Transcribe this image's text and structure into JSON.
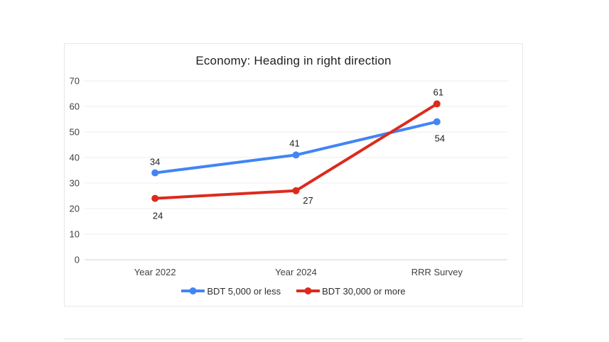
{
  "chart_data": {
    "type": "line",
    "title": "Economy: Heading in right direction",
    "categories": [
      "Year 2022",
      "Year 2024",
      "RRR Survey"
    ],
    "series": [
      {
        "name": "BDT 5,000 or less",
        "color": "#4285f4",
        "values": [
          34,
          41,
          54
        ],
        "label_positions": [
          "above",
          "above",
          "below"
        ],
        "label_offsets": [
          [
            0,
            -11
          ],
          [
            -2,
            -12
          ],
          [
            4,
            28
          ]
        ]
      },
      {
        "name": "BDT 30,000 or more",
        "color": "#dc2a1e",
        "values": [
          24,
          27,
          61
        ],
        "label_positions": [
          "below",
          "below",
          "above"
        ],
        "label_offsets": [
          [
            4,
            29
          ],
          [
            17,
            18
          ],
          [
            2,
            -12
          ]
        ]
      }
    ],
    "xlabel": "",
    "ylabel": "",
    "y_axis": {
      "min": 0,
      "max": 70,
      "tick_step": 10,
      "ticks": [
        0,
        10,
        20,
        30,
        40,
        50,
        60,
        70
      ]
    },
    "grid": true,
    "legend_position": "bottom"
  },
  "colors": {
    "series_blue": "#4285f4",
    "series_red": "#dc2a1e",
    "gridline": "#ececec",
    "baseline": "#d5d5d5",
    "axis_text": "#414141",
    "data_label_text": "#1c1c1c",
    "legend_text": "#2e2e2e",
    "card_border": "#e7e7e7",
    "background": "#ffffff"
  }
}
